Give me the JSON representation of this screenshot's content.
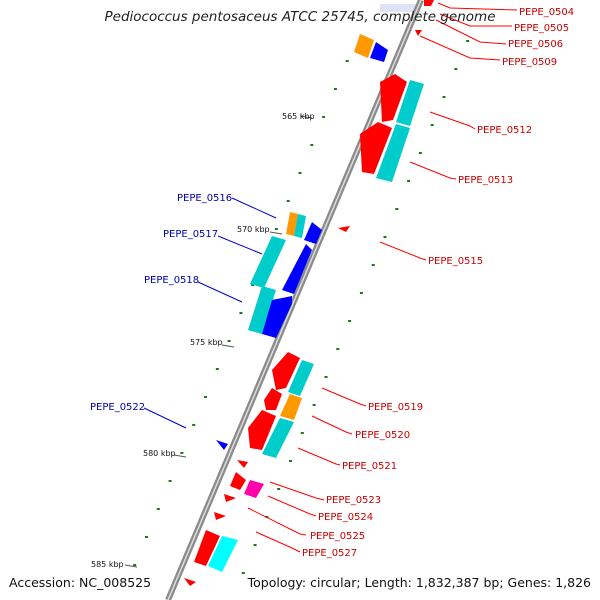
{
  "title": "Pediococcus pentosaceus ATCC 25745, complete genome",
  "footer": {
    "accession": "Accession: NC_008525",
    "summary": "Topology: circular; Length: 1,832,387 bp; Genes: 1,826"
  },
  "colors": {
    "backbone": "#888888",
    "forward_label": "#cc0000",
    "reverse_label": "#0000aa",
    "gene_red": "#ff0000",
    "gene_blue": "#0000ff",
    "gene_cyan": "#00cccc",
    "gene_orange": "#ff9900",
    "gene_magenta": "#ff00aa",
    "gc_dot": "#1a7a1a"
  },
  "ruler": [
    "565 kbp",
    "570 kbp",
    "575 kbp",
    "580 kbp",
    "585 kbp"
  ],
  "gene_labels": {
    "forward": [
      "PEPE_0504",
      "PEPE_0505",
      "PEPE_0506",
      "PEPE_0509",
      "PEPE_0512",
      "PEPE_0513",
      "PEPE_0515",
      "PEPE_0519",
      "PEPE_0520",
      "PEPE_0521",
      "PEPE_0523",
      "PEPE_0524",
      "PEPE_0525",
      "PEPE_0527"
    ],
    "reverse": [
      "PEPE_0516",
      "PEPE_0517",
      "PEPE_0518",
      "PEPE_0522"
    ]
  }
}
